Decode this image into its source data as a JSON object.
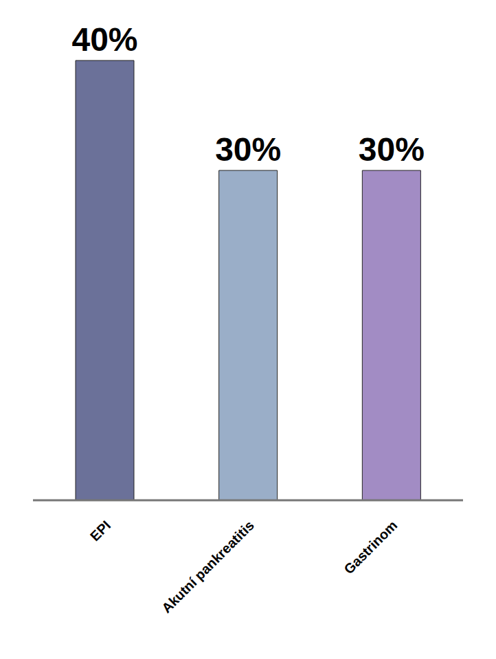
{
  "chart_data": {
    "type": "bar",
    "categories": [
      "EPI",
      "Akutní pankreatitis",
      "Gastrinom"
    ],
    "values": [
      40,
      30,
      30
    ],
    "value_labels": [
      "40%",
      "30%",
      "30%"
    ],
    "colors": [
      "#6b7199",
      "#9aaec8",
      "#a28cc4"
    ],
    "data_labels": true,
    "tick_labels": "x",
    "grid": false
  }
}
